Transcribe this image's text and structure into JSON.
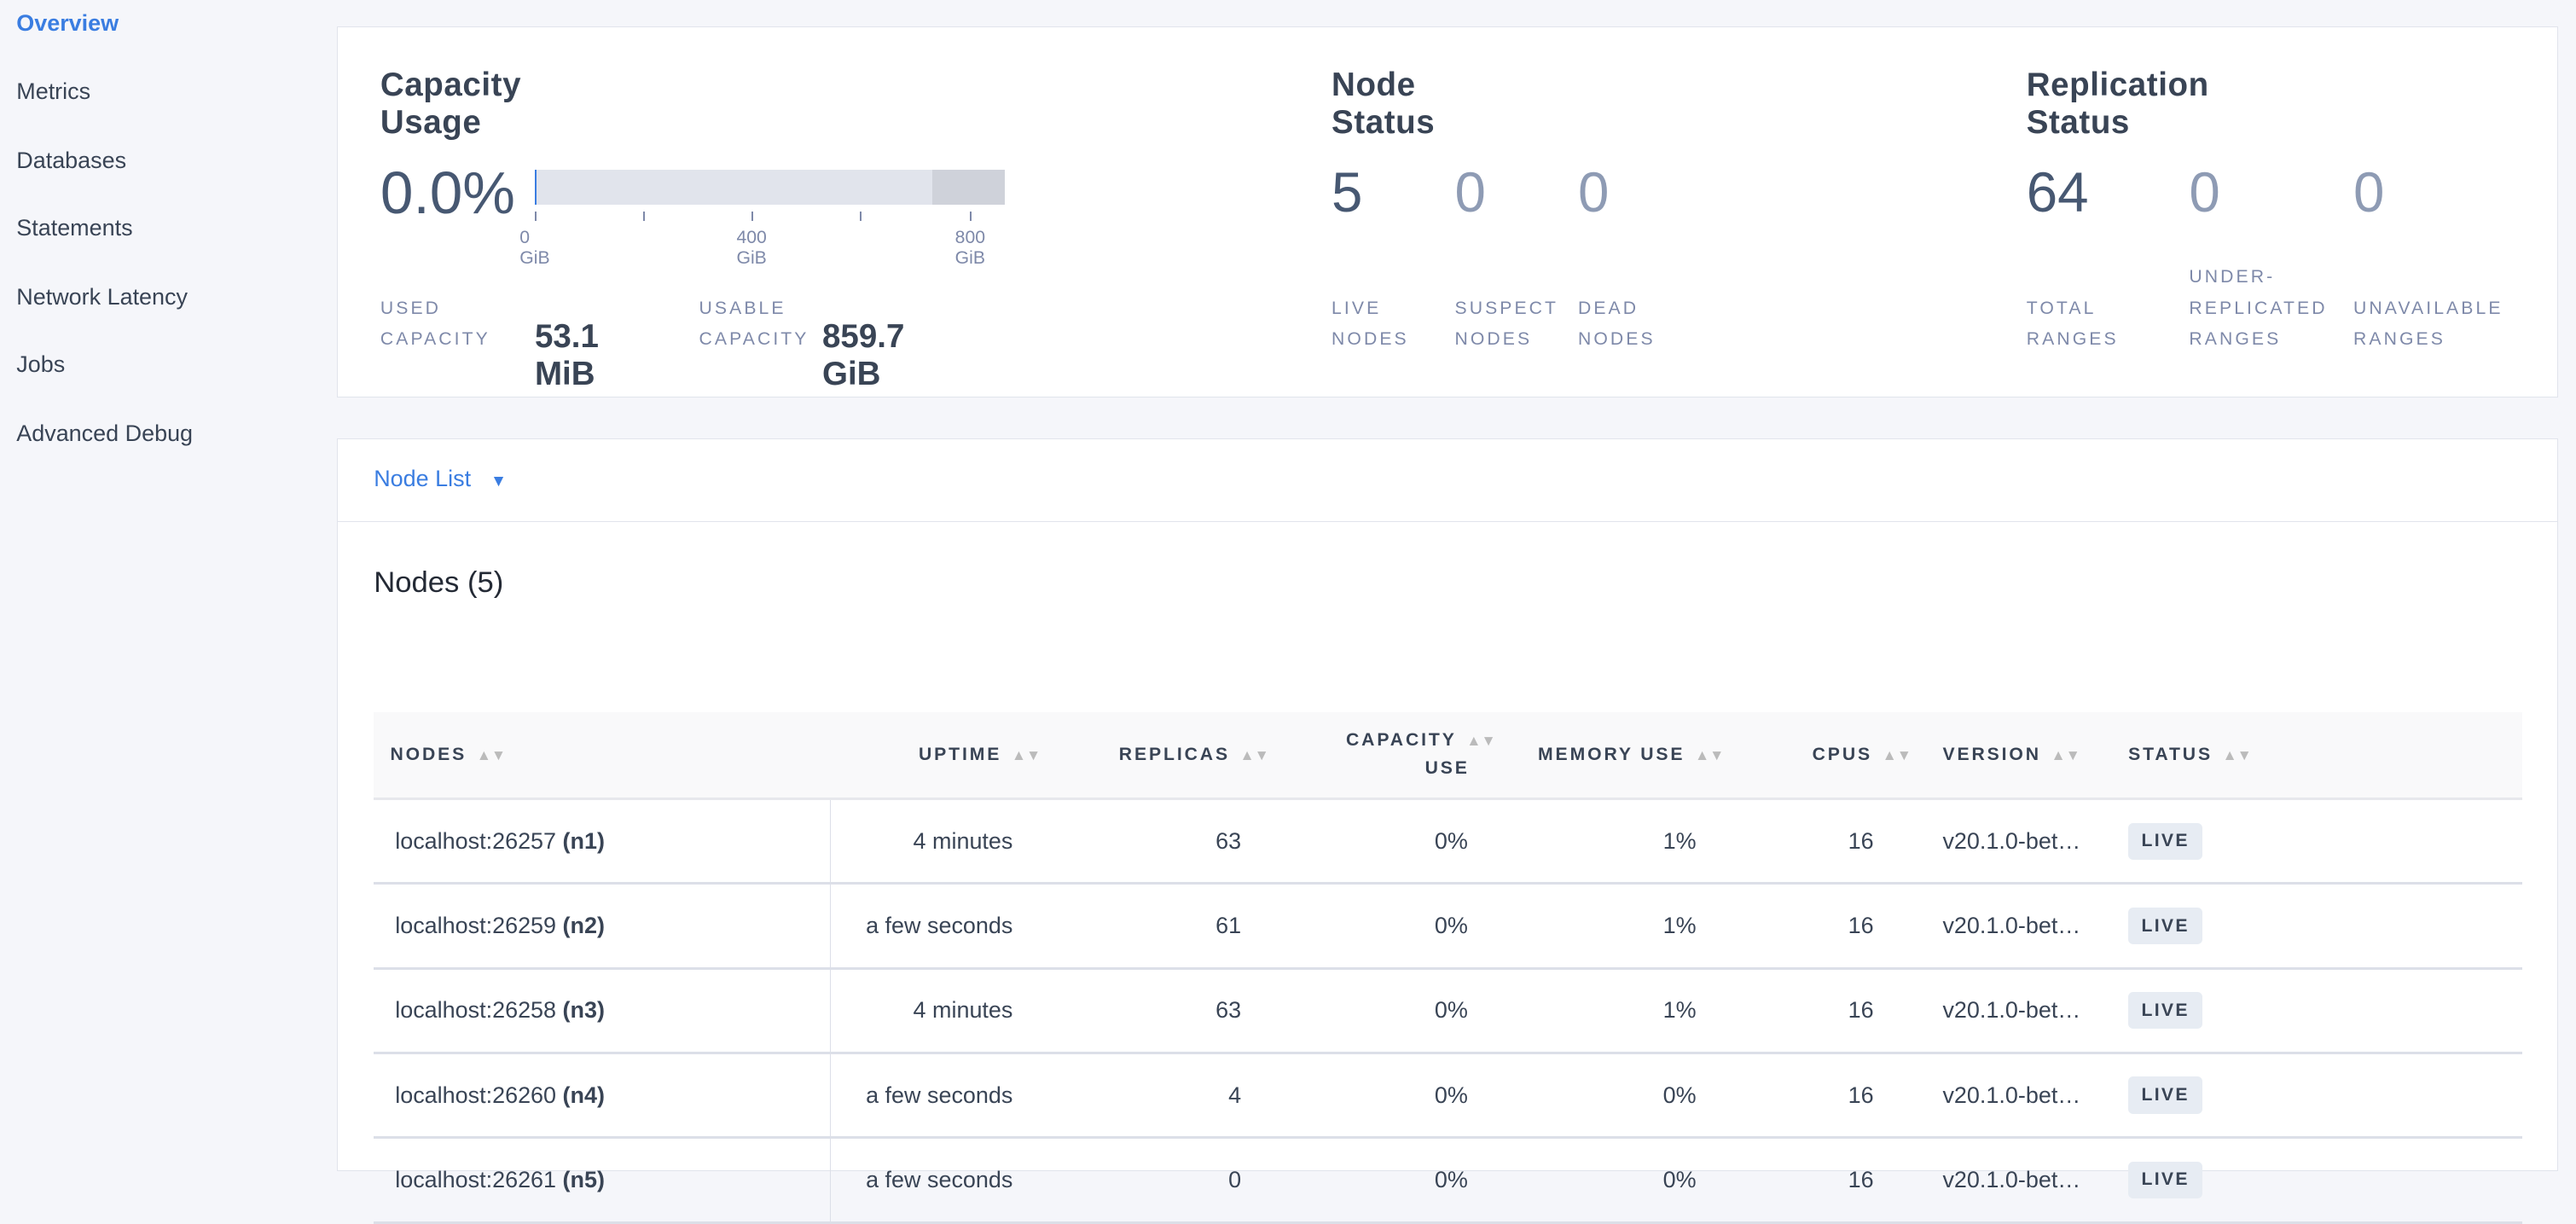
{
  "sidebar": {
    "items": [
      {
        "label": "Overview",
        "active": true
      },
      {
        "label": "Metrics"
      },
      {
        "label": "Databases"
      },
      {
        "label": "Statements"
      },
      {
        "label": "Network Latency"
      },
      {
        "label": "Jobs"
      },
      {
        "label": "Advanced Debug"
      }
    ]
  },
  "capacity": {
    "title": "Capacity Usage",
    "percent": "0.0%",
    "used_fraction": 0.0001,
    "ticks": [
      "0 GiB",
      "400 GiB",
      "800 GiB"
    ],
    "used_label_1": "USED",
    "used_label_2": "CAPACITY",
    "used_value": "53.1 MiB",
    "usable_label_1": "USABLE",
    "usable_label_2": "CAPACITY",
    "usable_value": "859.7 GiB"
  },
  "node_status": {
    "title": "Node Status",
    "stats": [
      {
        "value": "5",
        "label_1": "LIVE",
        "label_2": "NODES"
      },
      {
        "value": "0",
        "label_1": "SUSPECT",
        "label_2": "NODES"
      },
      {
        "value": "0",
        "label_1": "DEAD",
        "label_2": "NODES"
      }
    ]
  },
  "replication": {
    "title": "Replication Status",
    "stats": [
      {
        "value": "64",
        "label_1": "",
        "label_2": "TOTAL",
        "label_3": "RANGES"
      },
      {
        "value": "0",
        "label_1": "UNDER-",
        "label_2": "REPLICATED",
        "label_3": "RANGES"
      },
      {
        "value": "0",
        "label_1": "",
        "label_2": "UNAVAILABLE",
        "label_3": "RANGES"
      }
    ]
  },
  "node_list": {
    "dropdown_label": "Node List",
    "heading": "Nodes (5)",
    "columns": [
      "NODES",
      "UPTIME",
      "REPLICAS",
      "CAPACITY",
      "USE",
      "MEMORY USE",
      "CPUS",
      "VERSION",
      "STATUS"
    ],
    "rows": [
      {
        "host": "localhost:26257",
        "id": "(n1)",
        "uptime": "4 minutes",
        "replicas": "63",
        "capacity": "0%",
        "memory": "1%",
        "cpus": "16",
        "version": "v20.1.0-bet…",
        "status": "LIVE"
      },
      {
        "host": "localhost:26259",
        "id": "(n2)",
        "uptime": "a few seconds",
        "replicas": "61",
        "capacity": "0%",
        "memory": "1%",
        "cpus": "16",
        "version": "v20.1.0-bet…",
        "status": "LIVE"
      },
      {
        "host": "localhost:26258",
        "id": "(n3)",
        "uptime": "4 minutes",
        "replicas": "63",
        "capacity": "0%",
        "memory": "1%",
        "cpus": "16",
        "version": "v20.1.0-bet…",
        "status": "LIVE"
      },
      {
        "host": "localhost:26260",
        "id": "(n4)",
        "uptime": "a few seconds",
        "replicas": "4",
        "capacity": "0%",
        "memory": "0%",
        "cpus": "16",
        "version": "v20.1.0-bet…",
        "status": "LIVE"
      },
      {
        "host": "localhost:26261",
        "id": "(n5)",
        "uptime": "a few seconds",
        "replicas": "0",
        "capacity": "0%",
        "memory": "0%",
        "cpus": "16",
        "version": "v20.1.0-bet…",
        "status": "LIVE"
      }
    ]
  },
  "colors": {
    "accent": "#3a7de1",
    "text": "#394455",
    "muted": "#7e89a9"
  }
}
